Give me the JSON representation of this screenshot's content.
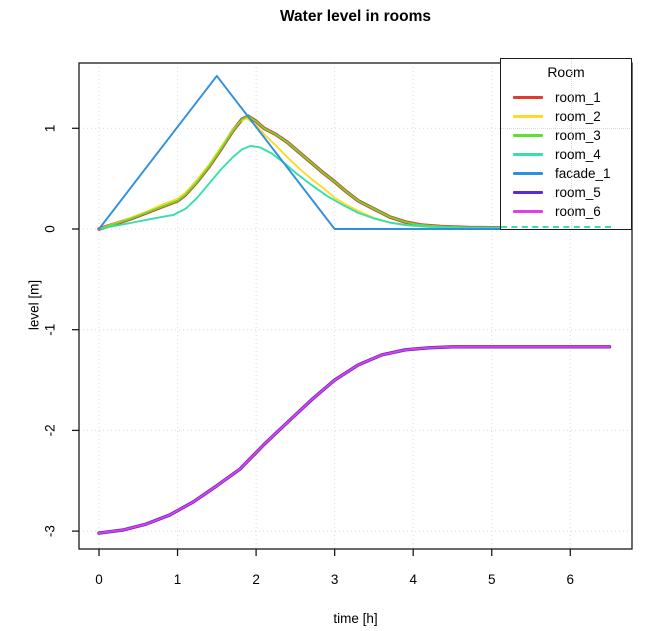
{
  "title": "Water level in rooms",
  "x_axis": {
    "label": "time [h]",
    "tick_labels": [
      "0",
      "1",
      "2",
      "3",
      "4",
      "5",
      "6"
    ]
  },
  "y_axis": {
    "label": "level [m]",
    "tick_labels": [
      "1",
      "0",
      "-1",
      "-2",
      "-3"
    ]
  },
  "legend": {
    "title": "Room",
    "items": [
      {
        "label": "room_1",
        "color": "#e03a33"
      },
      {
        "label": "room_2",
        "color": "#ffd928"
      },
      {
        "label": "room_3",
        "color": "#5fdf2e"
      },
      {
        "label": "room_4",
        "color": "#37dfad"
      },
      {
        "label": "facade_1",
        "color": "#2f8fe0"
      },
      {
        "label": "room_5",
        "color": "#5a2bd1"
      },
      {
        "label": "room_6",
        "color": "#e23ee0"
      }
    ]
  },
  "colors": {
    "grid": "#d8d8d8",
    "axis": "#1a1a1a",
    "background": "#ffffff"
  },
  "chart_data": {
    "type": "line",
    "title": "Water level in rooms",
    "xlabel": "time [h]",
    "ylabel": "level [m]",
    "xlim": [
      -0.26,
      6.76
    ],
    "ylim": [
      -3.18,
      1.68
    ],
    "x_ticks": [
      0,
      1,
      2,
      3,
      4,
      5,
      6
    ],
    "y_ticks": [
      1,
      0,
      -1,
      -2,
      -3
    ],
    "grid": "dotted",
    "legend_position": "top-right",
    "notes": "room_1 visually coincides with room_3 and room_5 coincides with room_6; they are hidden beneath those lines in the plot.",
    "series": [
      {
        "name": "room_1",
        "color": "#e03a33",
        "points": [
          [
            0,
            0
          ],
          [
            0.2,
            0.05
          ],
          [
            0.4,
            0.1
          ],
          [
            0.6,
            0.16
          ],
          [
            0.8,
            0.22
          ],
          [
            1.0,
            0.28
          ],
          [
            1.1,
            0.34
          ],
          [
            1.25,
            0.47
          ],
          [
            1.4,
            0.62
          ],
          [
            1.55,
            0.79
          ],
          [
            1.7,
            0.97
          ],
          [
            1.82,
            1.09
          ],
          [
            1.9,
            1.12
          ],
          [
            2.0,
            1.07
          ],
          [
            2.1,
            1.0
          ],
          [
            2.25,
            0.94
          ],
          [
            2.4,
            0.86
          ],
          [
            2.55,
            0.76
          ],
          [
            2.7,
            0.66
          ],
          [
            2.85,
            0.56
          ],
          [
            3.0,
            0.47
          ],
          [
            3.15,
            0.37
          ],
          [
            3.3,
            0.28
          ],
          [
            3.5,
            0.2
          ],
          [
            3.7,
            0.12
          ],
          [
            3.9,
            0.07
          ],
          [
            4.1,
            0.04
          ],
          [
            4.35,
            0.025
          ],
          [
            4.7,
            0.015
          ],
          [
            5.0,
            0.012
          ],
          [
            6.5,
            0.012
          ]
        ]
      },
      {
        "name": "room_2",
        "color": "#ffd928",
        "points": [
          [
            0,
            0
          ],
          [
            0.2,
            0.055
          ],
          [
            0.4,
            0.11
          ],
          [
            0.6,
            0.17
          ],
          [
            0.8,
            0.24
          ],
          [
            1.0,
            0.3
          ],
          [
            1.1,
            0.36
          ],
          [
            1.25,
            0.49
          ],
          [
            1.4,
            0.64
          ],
          [
            1.55,
            0.81
          ],
          [
            1.7,
            0.98
          ],
          [
            1.8,
            1.07
          ],
          [
            1.88,
            1.1
          ],
          [
            2.0,
            1.03
          ],
          [
            2.1,
            0.94
          ],
          [
            2.25,
            0.83
          ],
          [
            2.4,
            0.71
          ],
          [
            2.55,
            0.6
          ],
          [
            2.7,
            0.5
          ],
          [
            2.85,
            0.41
          ],
          [
            3.0,
            0.31
          ],
          [
            3.15,
            0.24
          ],
          [
            3.3,
            0.18
          ],
          [
            3.5,
            0.11
          ],
          [
            3.7,
            0.065
          ],
          [
            3.9,
            0.04
          ],
          [
            4.1,
            0.025
          ],
          [
            4.4,
            0.015
          ],
          [
            4.8,
            0.01
          ],
          [
            6.5,
            0.01
          ]
        ]
      },
      {
        "name": "room_3",
        "color": "#5fdf2e",
        "points": [
          [
            0,
            0
          ],
          [
            0.2,
            0.05
          ],
          [
            0.4,
            0.1
          ],
          [
            0.6,
            0.16
          ],
          [
            0.8,
            0.22
          ],
          [
            1.0,
            0.28
          ],
          [
            1.1,
            0.34
          ],
          [
            1.25,
            0.47
          ],
          [
            1.4,
            0.62
          ],
          [
            1.55,
            0.79
          ],
          [
            1.7,
            0.97
          ],
          [
            1.82,
            1.09
          ],
          [
            1.9,
            1.12
          ],
          [
            2.0,
            1.07
          ],
          [
            2.1,
            1.0
          ],
          [
            2.25,
            0.94
          ],
          [
            2.4,
            0.86
          ],
          [
            2.55,
            0.76
          ],
          [
            2.7,
            0.66
          ],
          [
            2.85,
            0.56
          ],
          [
            3.0,
            0.47
          ],
          [
            3.15,
            0.37
          ],
          [
            3.3,
            0.28
          ],
          [
            3.5,
            0.2
          ],
          [
            3.7,
            0.12
          ],
          [
            3.9,
            0.07
          ],
          [
            4.1,
            0.04
          ],
          [
            4.35,
            0.025
          ],
          [
            4.7,
            0.015
          ],
          [
            5.0,
            0.012
          ],
          [
            6.5,
            0.012
          ]
        ]
      },
      {
        "name": "room_4",
        "color": "#37dfad",
        "points": [
          [
            0,
            0
          ],
          [
            0.2,
            0.03
          ],
          [
            0.4,
            0.06
          ],
          [
            0.6,
            0.09
          ],
          [
            0.8,
            0.12
          ],
          [
            0.95,
            0.14
          ],
          [
            1.1,
            0.2
          ],
          [
            1.25,
            0.31
          ],
          [
            1.4,
            0.45
          ],
          [
            1.55,
            0.59
          ],
          [
            1.7,
            0.71
          ],
          [
            1.82,
            0.79
          ],
          [
            1.93,
            0.825
          ],
          [
            2.05,
            0.81
          ],
          [
            2.2,
            0.75
          ],
          [
            2.35,
            0.66
          ],
          [
            2.5,
            0.56
          ],
          [
            2.7,
            0.44
          ],
          [
            2.9,
            0.33
          ],
          [
            3.1,
            0.24
          ],
          [
            3.3,
            0.16
          ],
          [
            3.5,
            0.105
          ],
          [
            3.7,
            0.065
          ],
          [
            3.9,
            0.04
          ],
          [
            4.15,
            0.025
          ],
          [
            4.5,
            0.015
          ],
          [
            6.5,
            0.012
          ]
        ]
      },
      {
        "name": "facade_1",
        "color": "#2f8fe0",
        "points": [
          [
            0,
            0
          ],
          [
            1.5,
            1.52
          ],
          [
            3.0,
            0
          ],
          [
            6.5,
            0
          ]
        ]
      },
      {
        "name": "room_5",
        "color": "#5a2bd1",
        "points": [
          [
            0,
            -3.02
          ],
          [
            0.3,
            -2.99
          ],
          [
            0.6,
            -2.93
          ],
          [
            0.9,
            -2.84
          ],
          [
            1.2,
            -2.71
          ],
          [
            1.5,
            -2.55
          ],
          [
            1.8,
            -2.38
          ],
          [
            2.1,
            -2.14
          ],
          [
            2.4,
            -1.92
          ],
          [
            2.7,
            -1.7
          ],
          [
            3.0,
            -1.5
          ],
          [
            3.3,
            -1.35
          ],
          [
            3.6,
            -1.25
          ],
          [
            3.9,
            -1.2
          ],
          [
            4.2,
            -1.18
          ],
          [
            4.5,
            -1.17
          ],
          [
            6.5,
            -1.17
          ]
        ]
      },
      {
        "name": "room_6",
        "color": "#e23ee0",
        "points": [
          [
            0,
            -3.02
          ],
          [
            0.3,
            -2.99
          ],
          [
            0.6,
            -2.93
          ],
          [
            0.9,
            -2.84
          ],
          [
            1.2,
            -2.71
          ],
          [
            1.5,
            -2.55
          ],
          [
            1.8,
            -2.38
          ],
          [
            2.1,
            -2.14
          ],
          [
            2.4,
            -1.92
          ],
          [
            2.7,
            -1.7
          ],
          [
            3.0,
            -1.5
          ],
          [
            3.3,
            -1.35
          ],
          [
            3.6,
            -1.25
          ],
          [
            3.9,
            -1.2
          ],
          [
            4.2,
            -1.18
          ],
          [
            4.5,
            -1.17
          ],
          [
            6.5,
            -1.17
          ]
        ]
      }
    ]
  }
}
